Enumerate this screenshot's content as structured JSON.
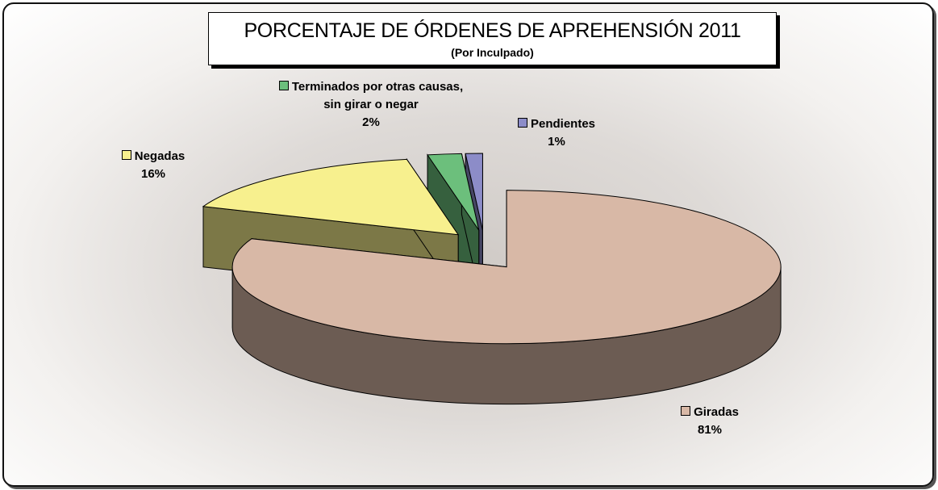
{
  "chart_data": {
    "type": "pie3d",
    "title": "PORCENTAJE DE ÓRDENES DE APREHENSIÓN 2011",
    "subtitle": "(Por Inculpado)",
    "categories": [
      "Giradas",
      "Negadas",
      "Terminados por otras causas, sin girar o negar",
      "Pendientes"
    ],
    "values": [
      81,
      16,
      2,
      1
    ],
    "value_labels": [
      "81%",
      "16%",
      "2%",
      "1%"
    ],
    "colors": [
      "#d8b8a6",
      "#f7f08e",
      "#6cbf7c",
      "#8c8cc8"
    ]
  }
}
